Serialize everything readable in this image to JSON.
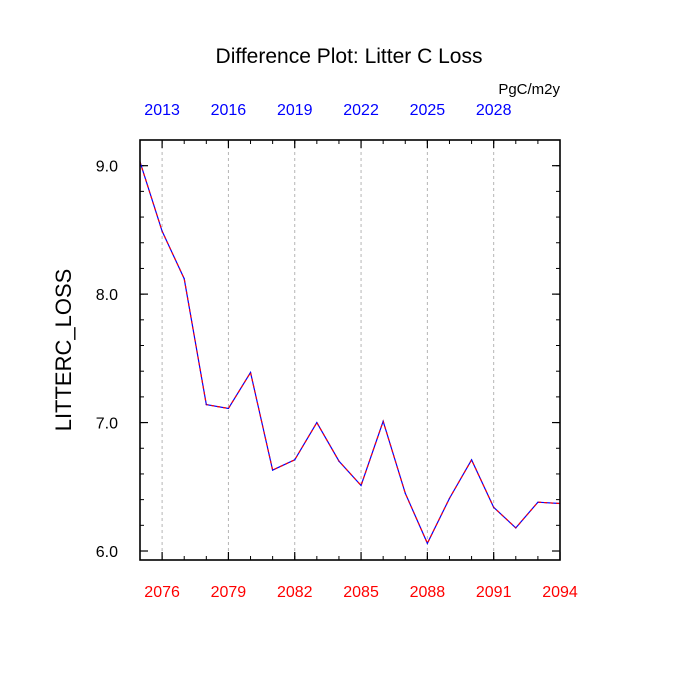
{
  "chart_data": {
    "type": "line",
    "title": "Difference Plot: Litter C Loss",
    "units": "PgC/m2y",
    "ylabel": "LITTERC_LOSS",
    "ylim": [
      5.93,
      9.2
    ],
    "y_ticks": [
      "6.0",
      "7.0",
      "8.0",
      "9.0"
    ],
    "x_bottom": {
      "range": [
        2075,
        2094
      ],
      "ticks": [
        "2076",
        "2079",
        "2082",
        "2085",
        "2088",
        "2091",
        "2094"
      ],
      "color": "#ff0000"
    },
    "x_top": {
      "range": [
        2012,
        2031
      ],
      "ticks": [
        "2013",
        "2016",
        "2019",
        "2022",
        "2025",
        "2028"
      ],
      "color": "#0000ff"
    },
    "grid": "vertical dashed",
    "series": [
      {
        "line_color": "#0000ff",
        "dash_color": "#ff0000",
        "x": [
          2075,
          2076,
          2077,
          2078,
          2079,
          2080,
          2081,
          2082,
          2083,
          2084,
          2085,
          2086,
          2087,
          2088,
          2089,
          2090,
          2091,
          2092,
          2093,
          2094
        ],
        "values": [
          9.03,
          8.49,
          8.12,
          7.14,
          7.11,
          7.39,
          6.63,
          6.71,
          7.0,
          6.7,
          6.51,
          7.01,
          6.45,
          6.06,
          6.41,
          6.71,
          6.34,
          6.18,
          6.38,
          6.37
        ]
      }
    ]
  }
}
